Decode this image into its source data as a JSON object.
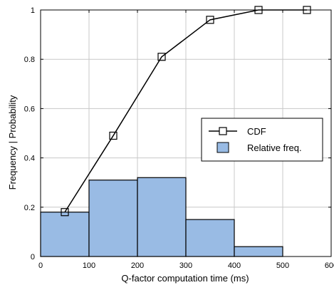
{
  "chart_data": {
    "type": "bar",
    "title": "",
    "xlabel": "Q-factor computation time (ms)",
    "ylabel": "Frequency | Probability",
    "xlim": [
      0,
      600
    ],
    "ylim": [
      0,
      1
    ],
    "x_ticks": [
      "0",
      "100",
      "200",
      "300",
      "400",
      "500",
      "600"
    ],
    "y_ticks": [
      "0",
      "0.2",
      "0.4",
      "0.6",
      "0.8",
      "1"
    ],
    "grid": true,
    "legend_position": "right",
    "series": [
      {
        "name": "Relative freq.",
        "type": "bar",
        "color": "#99bbe4",
        "bins": [
          {
            "from": 0,
            "to": 100,
            "value": 0.18
          },
          {
            "from": 100,
            "to": 200,
            "value": 0.31
          },
          {
            "from": 200,
            "to": 300,
            "value": 0.32
          },
          {
            "from": 300,
            "to": 400,
            "value": 0.15
          },
          {
            "from": 400,
            "to": 500,
            "value": 0.04
          },
          {
            "from": 500,
            "to": 600,
            "value": 0.0
          }
        ]
      },
      {
        "name": "CDF",
        "type": "line",
        "marker": "square",
        "color": "#000000",
        "x": [
          50,
          150,
          250,
          350,
          450,
          550
        ],
        "y": [
          0.18,
          0.49,
          0.81,
          0.96,
          1.0,
          1.0
        ]
      }
    ]
  }
}
